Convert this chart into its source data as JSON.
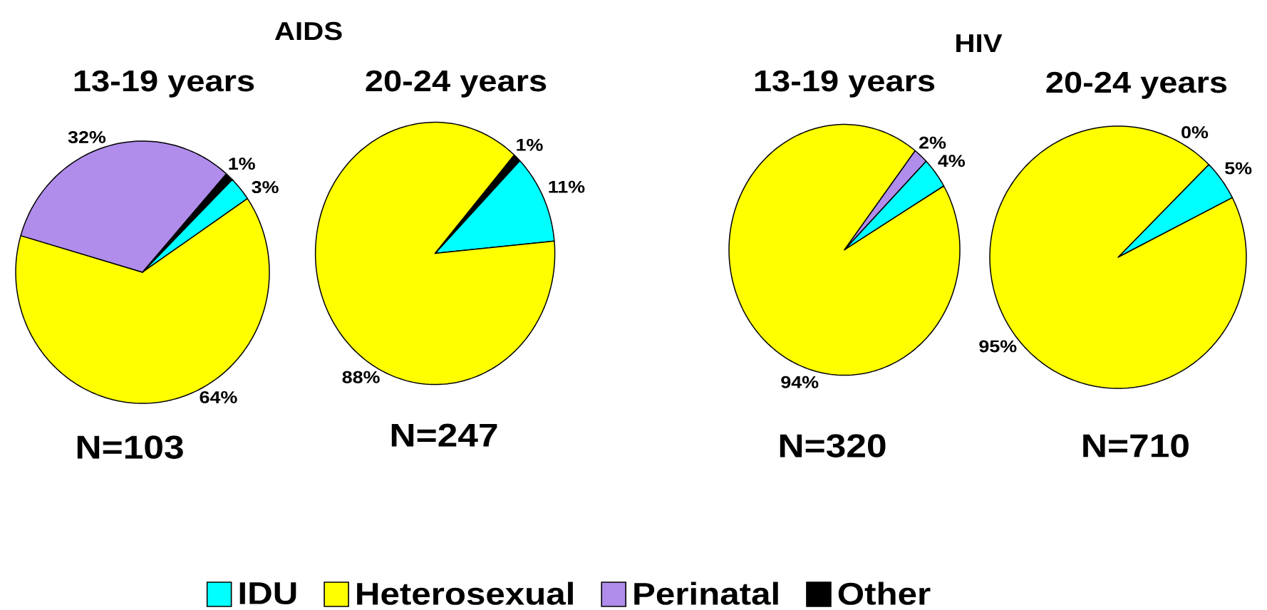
{
  "chart_data": [
    {
      "type": "pie",
      "title": "AIDS",
      "subtitle": "13-19 years",
      "categories": [
        "IDU",
        "Heterosexual",
        "Perinatal",
        "Other"
      ],
      "values": [
        3,
        64,
        32,
        1
      ],
      "colors": [
        "#00ffff",
        "#ffff00",
        "#b08ceb",
        "#000000"
      ],
      "value_labels": [
        "3%",
        "64%",
        "32%",
        "1%"
      ],
      "annotations": [
        "N=103"
      ],
      "legend": "bottom"
    },
    {
      "type": "pie",
      "subtitle": "20-24 years",
      "categories": [
        null,
        null,
        null,
        null
      ],
      "values": [
        11,
        88,
        0,
        1
      ],
      "colors": [
        "#00ffff",
        "#ffff00",
        "#b08ceb",
        "#000000"
      ],
      "value_labels": [
        "11%",
        "88%",
        null,
        "1%"
      ],
      "annotations": [
        "N=247"
      ]
    },
    {
      "type": "pie",
      "title": "HIV",
      "subtitle": "13-19 years",
      "categories": [
        null,
        null,
        null,
        null
      ],
      "values": [
        4,
        94,
        2,
        0
      ],
      "colors": [
        "#00ffff",
        "#ffff00",
        "#b08ceb",
        "#000000"
      ],
      "value_labels": [
        "4%",
        "94%",
        "2%",
        null
      ],
      "annotations": [
        "N=320"
      ]
    },
    {
      "type": "pie",
      "subtitle": "20-24 years",
      "categories": [
        null,
        null,
        null,
        null
      ],
      "values": [
        5,
        95,
        0,
        0
      ],
      "colors": [
        "#00ffff",
        "#ffff00",
        "#b08ceb",
        "#000000"
      ],
      "value_labels": [
        "5%",
        "95%",
        null,
        "0%"
      ],
      "annotations": [
        "N=710"
      ]
    }
  ]
}
